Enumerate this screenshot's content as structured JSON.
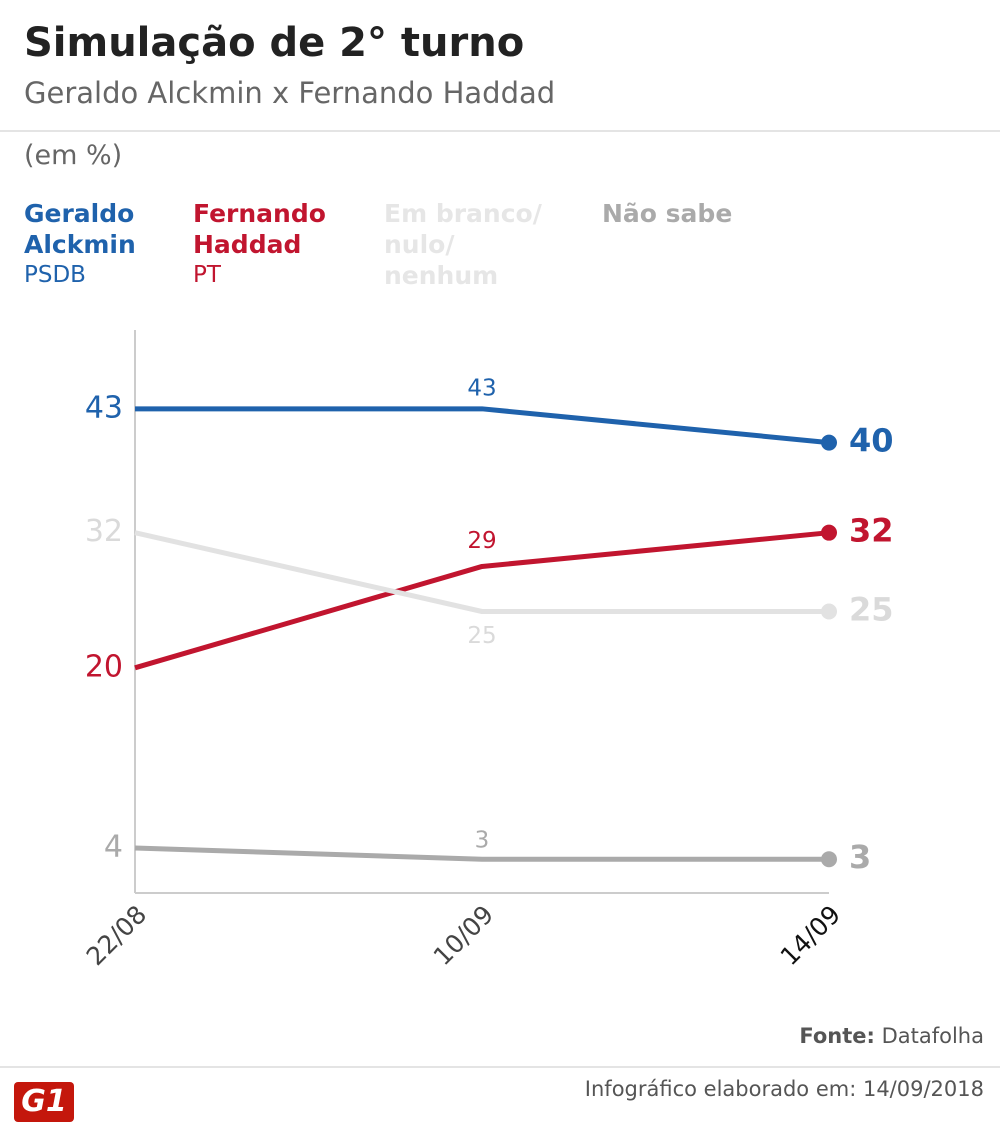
{
  "chart_data": {
    "type": "line",
    "title": "Simulação de 2° turno",
    "subtitle": "Geraldo Alckmin x Fernando Haddad",
    "unit_label": "(em %)",
    "categories": [
      "22/08",
      "10/09",
      "14/09"
    ],
    "ylim": [
      0,
      50
    ],
    "series": [
      {
        "name": "Geraldo Alckmin",
        "party": "PSDB",
        "color": "#1f62ac",
        "values": [
          43,
          43,
          40
        ]
      },
      {
        "name": "Fernando Haddad",
        "party": "PT",
        "color": "#c1152f",
        "values": [
          20,
          29,
          32
        ]
      },
      {
        "name": "Em branco/ nulo/ nenhum",
        "color": "#e2e2e2",
        "values": [
          32,
          25,
          25
        ]
      },
      {
        "name": "Não sabe",
        "color": "#aaaaaa",
        "values": [
          4,
          3,
          3
        ]
      }
    ],
    "source_label": "Fonte:",
    "source": "Datafolha",
    "footer": "Infográfico elaborado em: 14/09/2018",
    "logo": "G1"
  }
}
